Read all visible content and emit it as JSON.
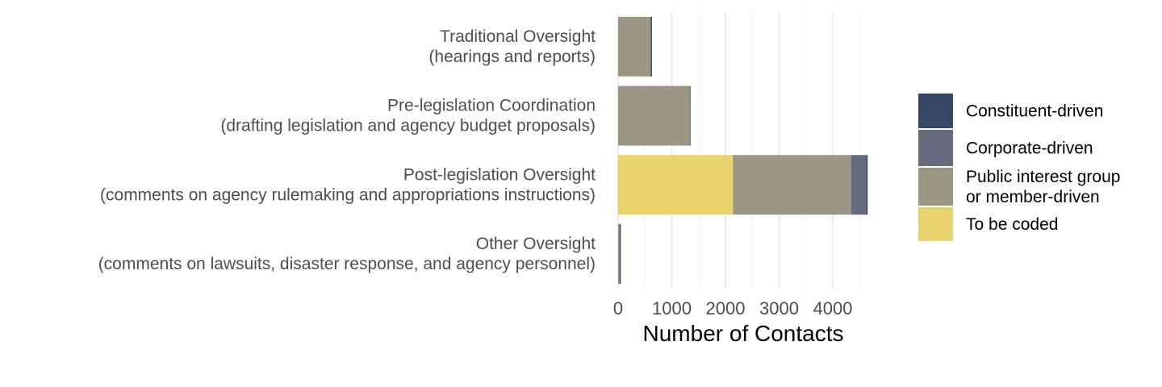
{
  "chart_data": {
    "type": "bar",
    "orientation": "horizontal",
    "stacked": true,
    "categories": [
      [
        "Traditional Oversight",
        "(hearings and reports)"
      ],
      [
        "Pre-legislation Coordination",
        "(drafting legislation and agency budget proposals)"
      ],
      [
        "Post-legislation Oversight",
        "(comments on agency rulemaking and appropriations instructions)"
      ],
      [
        "Other Oversight",
        "(comments on lawsuits, disaster response, and agency personnel)"
      ]
    ],
    "series": [
      {
        "name": "To be coded",
        "color": "#e8d36c",
        "values": [
          0,
          0,
          2140,
          0
        ]
      },
      {
        "name": "Public interest group\nor member-driven",
        "color": "#9c9784",
        "values": [
          600,
          1330,
          2200,
          20
        ]
      },
      {
        "name": "Corporate-driven",
        "color": "#656b7d",
        "values": [
          10,
          10,
          280,
          10
        ]
      },
      {
        "name": "Constituent-driven",
        "color": "#364766",
        "values": [
          20,
          10,
          30,
          20
        ]
      }
    ],
    "legend_order": [
      "Constituent-driven",
      "Corporate-driven",
      "Public interest group\nor member-driven",
      "To be coded"
    ],
    "xlabel": "Number of Contacts",
    "ylabel": "",
    "xlim": [
      0,
      4700
    ],
    "xticks": [
      0,
      1000,
      2000,
      3000,
      4000
    ],
    "grid": true,
    "legend_position": "right"
  }
}
